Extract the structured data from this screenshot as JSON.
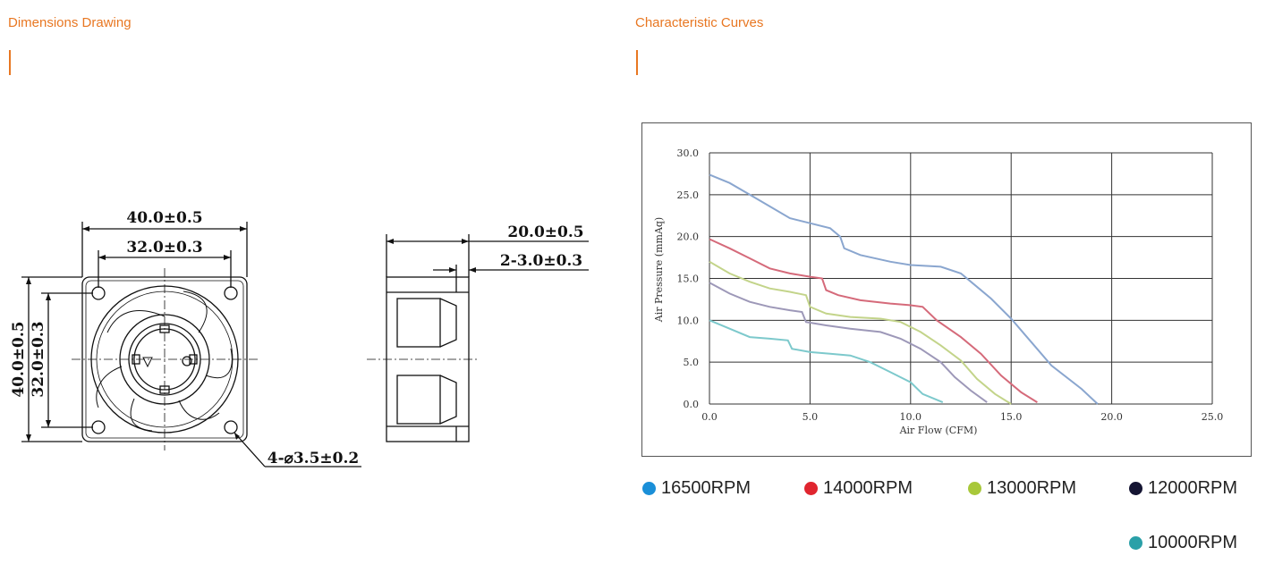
{
  "left_section": {
    "title": "Dimensions Drawing",
    "dims": {
      "width_outer": "40.0±0.5",
      "width_hole": "32.0±0.3",
      "height_outer": "40.0±0.5",
      "height_hole": "32.0±0.3",
      "depth": "20.0±0.5",
      "flange": "2-3.0±0.3",
      "holes": "4-⌀3.5±0.2"
    }
  },
  "right_section": {
    "title": "Characteristic Curves"
  },
  "colors": {
    "accent": "#e87722",
    "grid": "#333333"
  },
  "chart_data": {
    "type": "line",
    "xlabel": "Air Flow (CFM)",
    "ylabel": "Air Pressure (mmAq)",
    "xlim": [
      0,
      25
    ],
    "ylim": [
      0,
      30
    ],
    "x_ticks": [
      "0.0",
      "5.0",
      "10.0",
      "15.0",
      "20.0",
      "25.0"
    ],
    "y_ticks": [
      "0.0",
      "5.0",
      "10.0",
      "15.0",
      "20.0",
      "25.0",
      "30.0"
    ],
    "grid": true,
    "legend_position": "bottom",
    "series": [
      {
        "name": "16500RPM",
        "legend_color": "#1a8fd8",
        "line_color": "#8aa6cf",
        "points": [
          [
            0,
            27.4
          ],
          [
            1,
            26.4
          ],
          [
            2,
            25.0
          ],
          [
            3,
            23.6
          ],
          [
            4,
            22.2
          ],
          [
            5,
            21.6
          ],
          [
            6,
            21.0
          ],
          [
            6.5,
            20.0
          ],
          [
            6.7,
            18.6
          ],
          [
            7.5,
            17.8
          ],
          [
            9,
            17.0
          ],
          [
            10,
            16.6
          ],
          [
            11.5,
            16.4
          ],
          [
            12.5,
            15.6
          ],
          [
            13,
            14.6
          ],
          [
            14,
            12.6
          ],
          [
            15,
            10.2
          ],
          [
            16,
            7.4
          ],
          [
            17,
            4.6
          ],
          [
            18.5,
            1.8
          ],
          [
            19.3,
            0
          ]
        ]
      },
      {
        "name": "14000RPM",
        "legend_color": "#e0252f",
        "line_color": "#d56a7a",
        "points": [
          [
            0,
            19.7
          ],
          [
            1,
            18.6
          ],
          [
            2,
            17.4
          ],
          [
            3,
            16.2
          ],
          [
            4,
            15.6
          ],
          [
            5,
            15.2
          ],
          [
            5.6,
            15.0
          ],
          [
            5.8,
            13.6
          ],
          [
            6.4,
            13.0
          ],
          [
            7.5,
            12.4
          ],
          [
            9,
            12.0
          ],
          [
            10,
            11.8
          ],
          [
            10.6,
            11.6
          ],
          [
            11.3,
            10.0
          ],
          [
            12.5,
            8.0
          ],
          [
            13.5,
            6.0
          ],
          [
            14.5,
            3.4
          ],
          [
            15.5,
            1.4
          ],
          [
            16.3,
            0.2
          ]
        ]
      },
      {
        "name": "13000RPM",
        "legend_color": "#a8c83a",
        "line_color": "#c3d48a",
        "points": [
          [
            0,
            17.0
          ],
          [
            1,
            15.6
          ],
          [
            2,
            14.6
          ],
          [
            3,
            13.8
          ],
          [
            4,
            13.4
          ],
          [
            4.8,
            13.0
          ],
          [
            5.0,
            11.6
          ],
          [
            5.8,
            10.8
          ],
          [
            7,
            10.4
          ],
          [
            8.5,
            10.2
          ],
          [
            9.5,
            9.8
          ],
          [
            10.5,
            8.6
          ],
          [
            11.5,
            7.0
          ],
          [
            12.5,
            5.2
          ],
          [
            13.3,
            3.0
          ],
          [
            14.2,
            1.2
          ],
          [
            15,
            0
          ]
        ]
      },
      {
        "name": "12000RPM",
        "legend_color": "#141432",
        "line_color": "#9d98b8",
        "points": [
          [
            0,
            14.5
          ],
          [
            1,
            13.2
          ],
          [
            2,
            12.2
          ],
          [
            3,
            11.6
          ],
          [
            4,
            11.2
          ],
          [
            4.6,
            11.0
          ],
          [
            4.8,
            9.8
          ],
          [
            5.8,
            9.4
          ],
          [
            7,
            9.0
          ],
          [
            8.5,
            8.6
          ],
          [
            9.5,
            7.8
          ],
          [
            10.5,
            6.6
          ],
          [
            11.5,
            5.0
          ],
          [
            12.2,
            3.2
          ],
          [
            13,
            1.6
          ],
          [
            13.8,
            0.2
          ]
        ]
      },
      {
        "name": "10000RPM",
        "legend_color": "#2aa0a8",
        "line_color": "#7dc9cc",
        "points": [
          [
            0,
            10.0
          ],
          [
            1,
            9.0
          ],
          [
            2,
            8.0
          ],
          [
            3,
            7.8
          ],
          [
            3.9,
            7.6
          ],
          [
            4.1,
            6.6
          ],
          [
            5,
            6.2
          ],
          [
            6,
            6.0
          ],
          [
            7,
            5.8
          ],
          [
            8,
            5.0
          ],
          [
            9,
            3.8
          ],
          [
            10,
            2.6
          ],
          [
            10.6,
            1.2
          ],
          [
            11.6,
            0.2
          ]
        ]
      }
    ]
  }
}
